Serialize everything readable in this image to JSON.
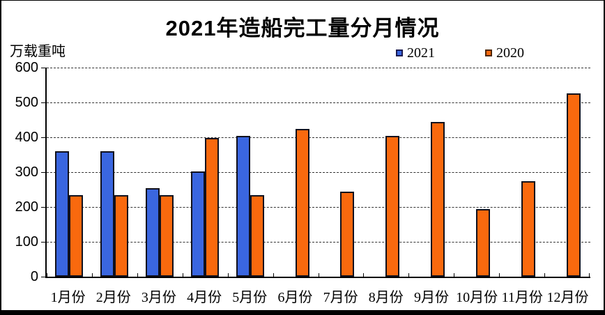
{
  "chart_data": {
    "type": "bar",
    "title": "2021年造船完工量分月情况",
    "ylabel": "万载重吨",
    "xlabel": "",
    "categories": [
      "1月份",
      "2月份",
      "3月份",
      "4月份",
      "5月份",
      "6月份",
      "7月份",
      "8月份",
      "9月份",
      "10月份",
      "11月份",
      "12月份"
    ],
    "series": [
      {
        "name": "2021",
        "color": "#3a66e0",
        "values": [
          360,
          360,
          255,
          303,
          405,
          null,
          null,
          null,
          null,
          null,
          null,
          null
        ]
      },
      {
        "name": "2020",
        "color": "#f9690e",
        "values": [
          235,
          235,
          235,
          398,
          235,
          425,
          245,
          405,
          445,
          195,
          275,
          527
        ]
      }
    ],
    "ylim": [
      0,
      600
    ],
    "ytick_step": 100,
    "ytick_labels": [
      "600",
      "500",
      "400",
      "300",
      "200",
      "100",
      "0"
    ],
    "grid": "horizontal-dashed",
    "legend_position": "top-center"
  }
}
